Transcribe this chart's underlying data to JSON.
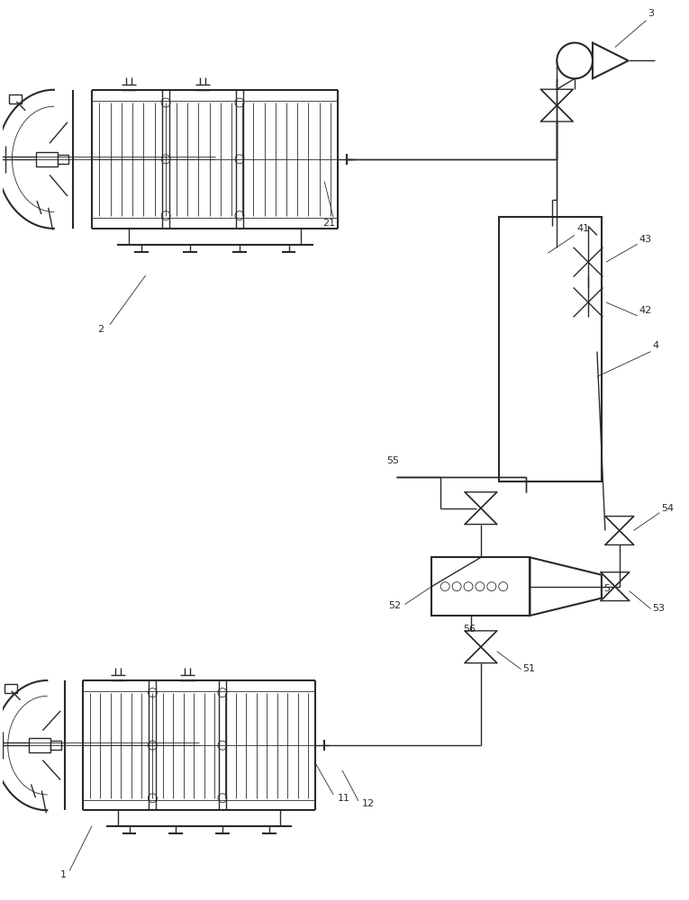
{
  "bg_color": "#ffffff",
  "line_color": "#2a2a2a",
  "lw": 1.0,
  "lw_thick": 1.5,
  "lw_thin": 0.6,
  "font_size": 8,
  "fig_w": 7.65,
  "fig_h": 10.0,
  "dpi": 100
}
